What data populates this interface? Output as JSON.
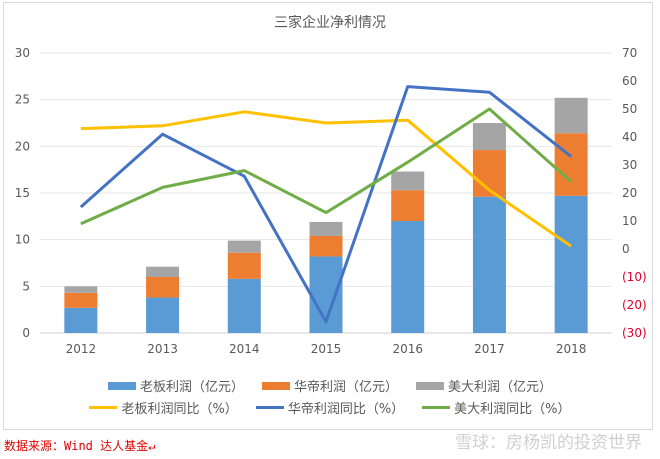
{
  "chart_data": {
    "type": "bar+line",
    "title": "三家企业净利情况",
    "categories": [
      "2012",
      "2013",
      "2014",
      "2015",
      "2016",
      "2017",
      "2018"
    ],
    "left_axis": {
      "range": [
        0,
        30
      ],
      "ticks": [
        "0",
        "5",
        "10",
        "15",
        "20",
        "25",
        "30"
      ]
    },
    "right_axis": {
      "range": [
        -30,
        70
      ],
      "ticks": [
        "(30)",
        "(20)",
        "(10)",
        "0",
        "10",
        "20",
        "30",
        "40",
        "50",
        "60",
        "70"
      ],
      "negative_color": "#e0002a"
    },
    "grid": true,
    "legend_position": "bottom",
    "bar_series": [
      {
        "name": "老板利润（亿元）",
        "color": "#5b9bd5",
        "values": [
          2.7,
          3.8,
          5.8,
          8.2,
          12.0,
          14.6,
          14.7
        ]
      },
      {
        "name": "华帝利润（亿元）",
        "color": "#ed7d31",
        "values": [
          1.6,
          2.2,
          2.8,
          2.2,
          3.3,
          5.0,
          6.7
        ]
      },
      {
        "name": "美大利润（亿元）",
        "color": "#a5a5a5",
        "values": [
          0.7,
          1.1,
          1.3,
          1.5,
          2.0,
          2.9,
          3.8
        ]
      }
    ],
    "line_series": [
      {
        "name": "老板利润同比（%）",
        "color": "#ffc000",
        "values": [
          43,
          44,
          49,
          45,
          46,
          21,
          1
        ]
      },
      {
        "name": "华帝利润同比（%）",
        "color": "#4472c4",
        "values": [
          15,
          41,
          26,
          -26,
          58,
          56,
          33
        ]
      },
      {
        "name": "美大利润同比（%）",
        "color": "#70ad47",
        "values": [
          9,
          22,
          28,
          13,
          31,
          50,
          24
        ]
      }
    ]
  },
  "footer": {
    "source": "数据来源：Wind 达人基金↵",
    "watermark": "雪球：房杨凯的投资世界"
  }
}
